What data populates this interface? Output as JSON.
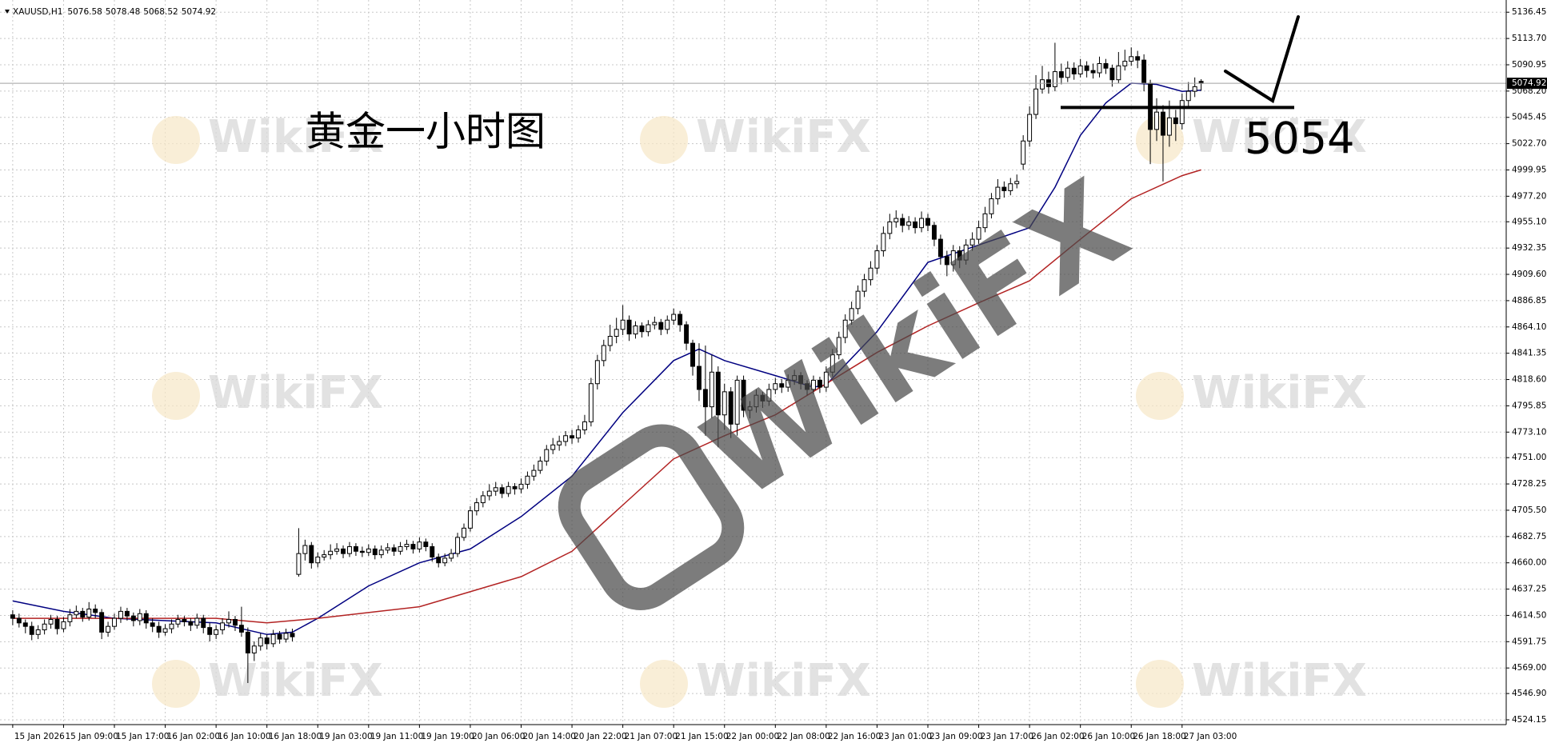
{
  "chart_data": {
    "type": "candlestick",
    "title": "XAUUSD,H1",
    "header_ohlc": [
      5076.58,
      5078.48,
      5068.52,
      5074.92
    ],
    "last_price": 5074.92,
    "annotations": [
      "黄金一小时图"
    ],
    "level": 5054,
    "watermark": "WikiFX",
    "bull_color": "#ffffff",
    "bear_color": "#000000",
    "wick_color": "#000000",
    "grid": true,
    "ylim": [
      4520,
      5147
    ],
    "yticks": [
      5136.45,
      {
        "value": 5113.7,
        "label": "5113.70"
      },
      5090.95,
      {
        "value": 5068.2,
        "label": "5068.20"
      },
      5045.45,
      {
        "value": 5022.7,
        "label": "5022.70"
      },
      4999.95,
      {
        "value": 4977.2,
        "label": "4977.20"
      },
      {
        "value": 4955.1,
        "label": "4955.10"
      },
      4932.35,
      {
        "value": 4909.6,
        "label": "4909.60"
      },
      4886.85,
      {
        "value": 4864.1,
        "label": "4864.10"
      },
      4841.35,
      {
        "value": 4818.6,
        "label": "4818.60"
      },
      4795.85,
      {
        "value": 4773.1,
        "label": "4773.10"
      },
      {
        "value": 4751,
        "label": "4751.00"
      },
      4728.25,
      {
        "value": 4705.5,
        "label": "4705.50"
      },
      4682.75,
      {
        "value": 4660,
        "label": "4660.00"
      },
      4637.25,
      {
        "value": 4614.5,
        "label": "4614.50"
      },
      4591.75,
      {
        "value": 4569,
        "label": "4569.00"
      },
      {
        "value": 4546.9,
        "label": "4546.90"
      },
      4524.15
    ],
    "xlim": [
      -2,
      235
    ],
    "categories": [
      "15 Jan 2026",
      null,
      null,
      null,
      null,
      null,
      null,
      null,
      "15 Jan 09:00",
      null,
      null,
      null,
      null,
      null,
      null,
      null,
      "15 Jan 17:00",
      null,
      null,
      null,
      null,
      null,
      null,
      null,
      "16 Jan 02:00",
      null,
      null,
      null,
      null,
      null,
      null,
      null,
      "16 Jan 10:00",
      null,
      null,
      null,
      null,
      null,
      null,
      null,
      "16 Jan 18:00",
      null,
      null,
      null,
      null,
      null,
      null,
      null,
      "19 Jan 03:00",
      null,
      null,
      null,
      null,
      null,
      null,
      null,
      "19 Jan 11:00",
      null,
      null,
      null,
      null,
      null,
      null,
      null,
      "19 Jan 19:00",
      null,
      null,
      null,
      null,
      null,
      null,
      null,
      "20 Jan 06:00",
      null,
      null,
      null,
      null,
      null,
      null,
      null,
      "20 Jan 14:00",
      null,
      null,
      null,
      null,
      null,
      null,
      null,
      "20 Jan 22:00",
      null,
      null,
      null,
      null,
      null,
      null,
      null,
      "21 Jan 07:00",
      null,
      null,
      null,
      null,
      null,
      null,
      null,
      "21 Jan 15:00",
      null,
      null,
      null,
      null,
      null,
      null,
      null,
      "22 Jan 00:00",
      null,
      null,
      null,
      null,
      null,
      null,
      null,
      "22 Jan 08:00",
      null,
      null,
      null,
      null,
      null,
      null,
      null,
      "22 Jan 16:00",
      null,
      null,
      null,
      null,
      null,
      null,
      null,
      "23 Jan 01:00",
      null,
      null,
      null,
      null,
      null,
      null,
      null,
      "23 Jan 09:00",
      null,
      null,
      null,
      null,
      null,
      null,
      null,
      "23 Jan 17:00",
      null,
      null,
      null,
      null,
      null,
      null,
      null,
      "26 Jan 02:00",
      null,
      null,
      null,
      null,
      null,
      null,
      null,
      "26 Jan 10:00",
      null,
      null,
      null,
      null,
      null,
      null,
      null,
      "26 Jan 18:00",
      null,
      null,
      null,
      null,
      null,
      null,
      null,
      "27 Jan 03:00",
      null,
      null,
      null
    ],
    "ohlc": [
      [
        4615,
        4619,
        4606,
        4612
      ],
      [
        4612,
        4616,
        4604,
        4608
      ],
      [
        4608,
        4611,
        4599,
        4605
      ],
      [
        4605,
        4609,
        4593,
        4598
      ],
      [
        4598,
        4606,
        4594,
        4602
      ],
      [
        4602,
        4611,
        4598,
        4607
      ],
      [
        4607,
        4615,
        4603,
        4611
      ],
      [
        4611,
        4614,
        4598,
        4603
      ],
      [
        4603,
        4613,
        4600,
        4609
      ],
      [
        4609,
        4620,
        4605,
        4615
      ],
      [
        4615,
        4623,
        4612,
        4618
      ],
      [
        4618,
        4621,
        4609,
        4613
      ],
      [
        4613,
        4626,
        4610,
        4620
      ],
      [
        4620,
        4624,
        4612,
        4617
      ],
      [
        4617,
        4620,
        4594,
        4600
      ],
      [
        4600,
        4609,
        4596,
        4605
      ],
      [
        4605,
        4616,
        4602,
        4612
      ],
      [
        4612,
        4622,
        4608,
        4618
      ],
      [
        4618,
        4621,
        4610,
        4614
      ],
      [
        4614,
        4617,
        4605,
        4610
      ],
      [
        4610,
        4620,
        4606,
        4616
      ],
      [
        4616,
        4619,
        4603,
        4608
      ],
      [
        4608,
        4612,
        4600,
        4605
      ],
      [
        4605,
        4609,
        4595,
        4600
      ],
      [
        4600,
        4607,
        4597,
        4603
      ],
      [
        4603,
        4611,
        4599,
        4607
      ],
      [
        4607,
        4615,
        4604,
        4611
      ],
      [
        4611,
        4614,
        4605,
        4609
      ],
      [
        4609,
        4612,
        4601,
        4606
      ],
      [
        4606,
        4616,
        4603,
        4612
      ],
      [
        4612,
        4615,
        4599,
        4604
      ],
      [
        4604,
        4608,
        4592,
        4598
      ],
      [
        4598,
        4606,
        4594,
        4602
      ],
      [
        4602,
        4612,
        4598,
        4608
      ],
      [
        4608,
        4618,
        4604,
        4611
      ],
      [
        4611,
        4614,
        4601,
        4606
      ],
      [
        4606,
        4622,
        4596,
        4600
      ],
      [
        4600,
        4604,
        4556,
        4582
      ],
      [
        4582,
        4592,
        4575,
        4588
      ],
      [
        4588,
        4599,
        4584,
        4595
      ],
      [
        4595,
        4598,
        4585,
        4590
      ],
      [
        4590,
        4602,
        4587,
        4598
      ],
      [
        4598,
        4601,
        4590,
        4594
      ],
      [
        4594,
        4603,
        4591,
        4599
      ],
      [
        4599,
        4603,
        4592,
        4596
      ],
      [
        4650,
        4690,
        4648,
        4668
      ],
      [
        4668,
        4680,
        4662,
        4675
      ],
      [
        4675,
        4678,
        4655,
        4660
      ],
      [
        4660,
        4669,
        4656,
        4665
      ],
      [
        4665,
        4671,
        4662,
        4667
      ],
      [
        4667,
        4676,
        4663,
        4670
      ],
      [
        4670,
        4677,
        4667,
        4672
      ],
      [
        4672,
        4675,
        4664,
        4668
      ],
      [
        4668,
        4678,
        4665,
        4674
      ],
      [
        4674,
        4677,
        4666,
        4670
      ],
      [
        4670,
        4674,
        4665,
        4669
      ],
      [
        4669,
        4676,
        4666,
        4672
      ],
      [
        4672,
        4675,
        4663,
        4667
      ],
      [
        4667,
        4675,
        4664,
        4671
      ],
      [
        4671,
        4677,
        4668,
        4673
      ],
      [
        4673,
        4676,
        4666,
        4670
      ],
      [
        4670,
        4678,
        4667,
        4674
      ],
      [
        4674,
        4680,
        4671,
        4676
      ],
      [
        4676,
        4679,
        4668,
        4672
      ],
      [
        4672,
        4682,
        4669,
        4678
      ],
      [
        4678,
        4681,
        4670,
        4674
      ],
      [
        4674,
        4677,
        4661,
        4665
      ],
      [
        4665,
        4668,
        4656,
        4660
      ],
      [
        4660,
        4668,
        4657,
        4664
      ],
      [
        4664,
        4672,
        4661,
        4668
      ],
      [
        4668,
        4686,
        4665,
        4682
      ],
      [
        4682,
        4694,
        4679,
        4690
      ],
      [
        4690,
        4709,
        4687,
        4705
      ],
      [
        4705,
        4716,
        4701,
        4712
      ],
      [
        4712,
        4722,
        4708,
        4718
      ],
      [
        4718,
        4728,
        4714,
        4722
      ],
      [
        4722,
        4730,
        4718,
        4725
      ],
      [
        4725,
        4728,
        4716,
        4720
      ],
      [
        4720,
        4730,
        4717,
        4726
      ],
      [
        4726,
        4729,
        4719,
        4724
      ],
      [
        4724,
        4733,
        4720,
        4728
      ],
      [
        4728,
        4739,
        4724,
        4735
      ],
      [
        4735,
        4745,
        4731,
        4740
      ],
      [
        4740,
        4752,
        4737,
        4748
      ],
      [
        4748,
        4762,
        4744,
        4758
      ],
      [
        4758,
        4768,
        4754,
        4762
      ],
      [
        4762,
        4770,
        4757,
        4765
      ],
      [
        4765,
        4774,
        4761,
        4770
      ],
      [
        4770,
        4775,
        4763,
        4768
      ],
      [
        4768,
        4779,
        4764,
        4775
      ],
      [
        4775,
        4788,
        4771,
        4782
      ],
      [
        4782,
        4820,
        4778,
        4815
      ],
      [
        4815,
        4840,
        4810,
        4835
      ],
      [
        4835,
        4853,
        4830,
        4848
      ],
      [
        4848,
        4866,
        4843,
        4856
      ],
      [
        4856,
        4872,
        4850,
        4862
      ],
      [
        4862,
        4883,
        4857,
        4870
      ],
      [
        4870,
        4874,
        4852,
        4858
      ],
      [
        4858,
        4869,
        4854,
        4865
      ],
      [
        4865,
        4868,
        4855,
        4860
      ],
      [
        4860,
        4870,
        4856,
        4866
      ],
      [
        4866,
        4873,
        4862,
        4868
      ],
      [
        4868,
        4871,
        4857,
        4862
      ],
      [
        4862,
        4874,
        4858,
        4870
      ],
      [
        4870,
        4880,
        4866,
        4875
      ],
      [
        4875,
        4878,
        4860,
        4866
      ],
      [
        4866,
        4869,
        4844,
        4850
      ],
      [
        4850,
        4853,
        4822,
        4830
      ],
      [
        4830,
        4850,
        4800,
        4810
      ],
      [
        4810,
        4848,
        4770,
        4795
      ],
      [
        4795,
        4840,
        4785,
        4825
      ],
      [
        4825,
        4830,
        4760,
        4788
      ],
      [
        4788,
        4815,
        4775,
        4808
      ],
      [
        4808,
        4812,
        4768,
        4780
      ],
      [
        4780,
        4822,
        4770,
        4818
      ],
      [
        4818,
        4822,
        4786,
        4792
      ],
      [
        4792,
        4800,
        4785,
        4795
      ],
      [
        4795,
        4810,
        4790,
        4805
      ],
      [
        4805,
        4808,
        4794,
        4800
      ],
      [
        4800,
        4815,
        4796,
        4810
      ],
      [
        4810,
        4820,
        4806,
        4815
      ],
      [
        4815,
        4819,
        4807,
        4812
      ],
      [
        4812,
        4823,
        4808,
        4818
      ],
      [
        4818,
        4827,
        4814,
        4822
      ],
      [
        4822,
        4825,
        4810,
        4815
      ],
      [
        4815,
        4818,
        4805,
        4810
      ],
      [
        4810,
        4822,
        4806,
        4818
      ],
      [
        4818,
        4821,
        4807,
        4812
      ],
      [
        4812,
        4830,
        4808,
        4825
      ],
      [
        4825,
        4845,
        4821,
        4840
      ],
      [
        4840,
        4860,
        4836,
        4855
      ],
      [
        4855,
        4875,
        4850,
        4870
      ],
      [
        4870,
        4886,
        4866,
        4880
      ],
      [
        4880,
        4900,
        4875,
        4895
      ],
      [
        4895,
        4910,
        4890,
        4905
      ],
      [
        4905,
        4921,
        4900,
        4915
      ],
      [
        4915,
        4935,
        4910,
        4930
      ],
      [
        4930,
        4951,
        4925,
        4945
      ],
      [
        4945,
        4962,
        4940,
        4955
      ],
      [
        4955,
        4965,
        4950,
        4958
      ],
      [
        4958,
        4962,
        4946,
        4952
      ],
      [
        4952,
        4960,
        4948,
        4955
      ],
      [
        4955,
        4959,
        4945,
        4950
      ],
      [
        4950,
        4964,
        4946,
        4958
      ],
      [
        4958,
        4962,
        4947,
        4952
      ],
      [
        4952,
        4955,
        4934,
        4940
      ],
      [
        4940,
        4944,
        4918,
        4925
      ],
      [
        4925,
        4930,
        4908,
        4918
      ],
      [
        4918,
        4935,
        4912,
        4930
      ],
      [
        4930,
        4934,
        4915,
        4922
      ],
      [
        4922,
        4940,
        4918,
        4935
      ],
      [
        4935,
        4946,
        4930,
        4940
      ],
      [
        4940,
        4956,
        4936,
        4950
      ],
      [
        4950,
        4968,
        4946,
        4962
      ],
      [
        4962,
        4980,
        4958,
        4975
      ],
      [
        4975,
        4992,
        4970,
        4985
      ],
      [
        4985,
        4990,
        4976,
        4982
      ],
      [
        4982,
        4993,
        4978,
        4988
      ],
      [
        4988,
        4996,
        4984,
        4990
      ],
      [
        5005,
        5030,
        5000,
        5025
      ],
      [
        5025,
        5055,
        5020,
        5048
      ],
      [
        5048,
        5082,
        5044,
        5070
      ],
      [
        5070,
        5090,
        5066,
        5078
      ],
      [
        5078,
        5085,
        5066,
        5072
      ],
      [
        5072,
        5110,
        5068,
        5085
      ],
      [
        5085,
        5092,
        5074,
        5080
      ],
      [
        5080,
        5094,
        5076,
        5088
      ],
      [
        5088,
        5093,
        5078,
        5083
      ],
      [
        5083,
        5096,
        5080,
        5090
      ],
      [
        5090,
        5094,
        5080,
        5086
      ],
      [
        5086,
        5092,
        5079,
        5084
      ],
      [
        5084,
        5098,
        5080,
        5092
      ],
      [
        5092,
        5096,
        5083,
        5088
      ],
      [
        5088,
        5091,
        5072,
        5078
      ],
      [
        5078,
        5102,
        5075,
        5090
      ],
      [
        5090,
        5104,
        5086,
        5094
      ],
      [
        5094,
        5106,
        5090,
        5098
      ],
      [
        5098,
        5103,
        5088,
        5095
      ],
      [
        5095,
        5100,
        5068,
        5075
      ],
      [
        5075,
        5078,
        5005,
        5035
      ],
      [
        5035,
        5062,
        5025,
        5050
      ],
      [
        5050,
        5056,
        4990,
        5030
      ],
      [
        5030,
        5060,
        5020,
        5045
      ],
      [
        5045,
        5052,
        5025,
        5040
      ],
      [
        5040,
        5066,
        5035,
        5060
      ],
      [
        5060,
        5076,
        5055,
        5068
      ],
      [
        5068,
        5080,
        5063,
        5072
      ],
      [
        5076.58,
        5078.48,
        5068.52,
        5074.92
      ]
    ],
    "ma": [
      {
        "color": "#000080",
        "x": [
          0,
          8,
          16,
          24,
          32,
          40,
          44,
          48,
          56,
          64,
          72,
          80,
          88,
          96,
          104,
          108,
          112,
          120,
          126,
          128,
          136,
          144,
          152,
          160,
          164,
          168,
          172,
          176,
          180,
          184,
          187
        ],
        "values": [
          4627,
          4618,
          4612,
          4610,
          4608,
          4598,
          4600,
          4612,
          4640,
          4660,
          4672,
          4700,
          4735,
          4790,
          4835,
          4845,
          4835,
          4822,
          4812,
          4814,
          4860,
          4920,
          4935,
          4950,
          4985,
          5030,
          5058,
          5075,
          5074,
          5068,
          5069
        ]
      },
      {
        "color": "#b22222",
        "x": [
          0,
          16,
          32,
          40,
          48,
          64,
          80,
          88,
          96,
          104,
          112,
          120,
          128,
          136,
          144,
          152,
          160,
          168,
          176,
          184,
          187
        ],
        "values": [
          4612,
          4612,
          4612,
          4608,
          4612,
          4622,
          4648,
          4670,
          4710,
          4750,
          4770,
          4788,
          4815,
          4842,
          4865,
          4885,
          4904,
          4940,
          4975,
          4995,
          5000
        ]
      }
    ]
  }
}
